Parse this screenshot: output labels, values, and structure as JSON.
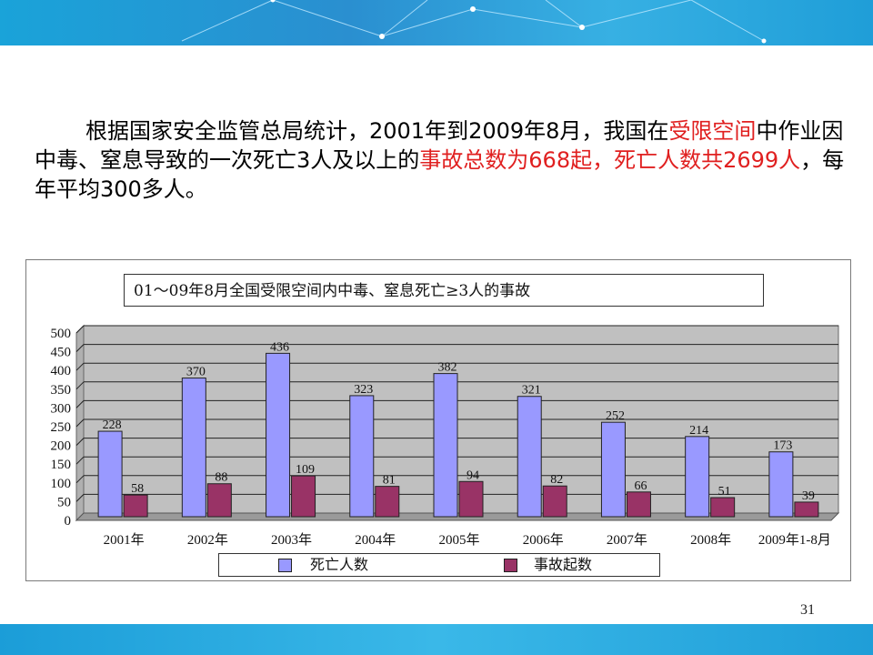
{
  "intro": {
    "part1": "根据国家安全监管总局统计，2001年到2009年8月，我国在",
    "highlight1": "受限空间",
    "part2": "中作业因中毒、窒息导致的一次死亡3人及以上的",
    "highlight2": "事故总数为668起，死亡人数共2699人",
    "part3": "，每年平均300多人。"
  },
  "page_number": "31",
  "colors": {
    "banner": "#1aa3d9",
    "highlight": "#e02020",
    "plot_bg": "#c0c0c0",
    "deaths_bar": "#9999ff",
    "accidents_bar": "#993366"
  },
  "chart_data": {
    "type": "bar",
    "title": "01～09年8月全国受限空间内中毒、窒息死亡≥3人的事故",
    "categories": [
      "2001年",
      "2002年",
      "2003年",
      "2004年",
      "2005年",
      "2006年",
      "2007年",
      "2008年",
      "2009年1-8月"
    ],
    "series": [
      {
        "name": "死亡人数",
        "values": [
          228,
          370,
          436,
          323,
          382,
          321,
          252,
          214,
          173
        ]
      },
      {
        "name": "事故起数",
        "values": [
          58,
          88,
          109,
          81,
          94,
          82,
          66,
          51,
          39
        ]
      }
    ],
    "ylim": [
      0,
      500
    ],
    "yticks": [
      0,
      50,
      100,
      150,
      200,
      250,
      300,
      350,
      400,
      450,
      500
    ],
    "grid": true,
    "legend_position": "bottom"
  }
}
